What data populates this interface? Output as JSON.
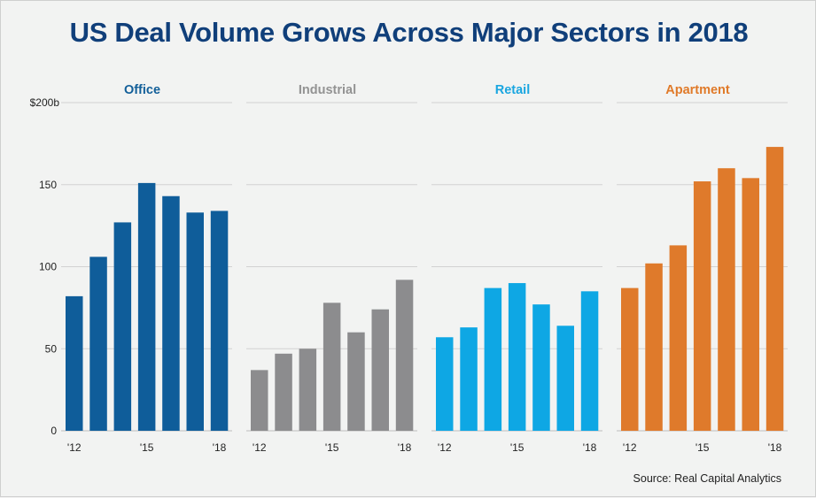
{
  "title": "US Deal Volume Grows Across Major Sectors in 2018",
  "source": "Source: Real Capital Analytics",
  "chart_data": {
    "type": "bar",
    "ylim": [
      0,
      200
    ],
    "yticks": [
      {
        "value": 0,
        "label": "0"
      },
      {
        "value": 50,
        "label": "50"
      },
      {
        "value": 100,
        "label": "100"
      },
      {
        "value": 150,
        "label": "150"
      },
      {
        "value": 200,
        "label": "$200b"
      }
    ],
    "categories": [
      "2012",
      "2013",
      "2014",
      "2015",
      "2016",
      "2017",
      "2018"
    ],
    "xtick_labels": [
      "'12",
      "",
      "",
      "'15",
      "",
      "",
      "'18"
    ],
    "grid": true,
    "panels": [
      {
        "name": "Office",
        "color": "#0f5d9a",
        "title_color": "#125f99",
        "values": [
          82,
          106,
          127,
          151,
          143,
          133,
          134
        ]
      },
      {
        "name": "Industrial",
        "color": "#8c8c8e",
        "title_color": "#939393",
        "values": [
          37,
          47,
          50,
          78,
          60,
          74,
          92
        ]
      },
      {
        "name": "Retail",
        "color": "#0ea7e4",
        "title_color": "#1aa6e0",
        "values": [
          57,
          63,
          87,
          90,
          77,
          64,
          85
        ]
      },
      {
        "name": "Apartment",
        "color": "#df7a2b",
        "title_color": "#e07a29",
        "values": [
          87,
          102,
          113,
          152,
          160,
          154,
          173
        ]
      }
    ]
  }
}
